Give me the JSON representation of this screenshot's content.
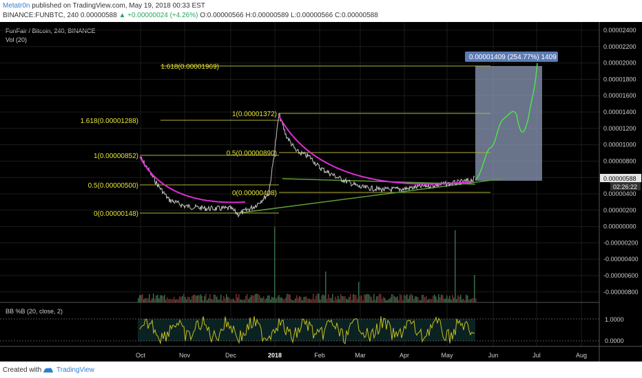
{
  "header": {
    "user": "Metatr0n",
    "published": "published on TradingView.com, May 19, 2018 00:33 EST",
    "symbol": "BINANCE:FUNBTC, 240",
    "change": "+0.00000024 (+4.26%)",
    "ohlc": "O:0.00000566 H:0.00000589 L:0.00000566 C:0.00000588",
    "price": "0.00000588"
  },
  "chart_title": {
    "name": "FunFair / Bitcoin, 240, BINANCE",
    "vol": "Vol (20)",
    "indicator": "BB %B (20, close, 2)"
  },
  "footer": {
    "created": "Created with",
    "brand": "TradingView"
  },
  "colors": {
    "background": "#000000",
    "price": "#c8c8c8",
    "fib": "#b3b33a",
    "arc": "#e02bd6",
    "trend": "#5a9e3a",
    "forecast": "#4fe04f",
    "measure": "#8c9ab8",
    "bb": "#c8c01e"
  },
  "chart_data": {
    "type": "line",
    "x_labels": [
      "Oct",
      "Nov",
      "Dec",
      "2018",
      "Feb",
      "Mar",
      "Apr",
      "May",
      "Jun",
      "Jul",
      "Aug"
    ],
    "y_axis": [
      "0.00002400",
      "0.00002200",
      "0.00002000",
      "0.00001800",
      "0.00001600",
      "0.00001400",
      "0.00001200",
      "0.00001000",
      "0.00000800",
      "0.00000600",
      "0.00000400",
      "0.00000200",
      "0.00000000",
      "-0.00000200",
      "-0.00000400",
      "-0.00000600",
      "-0.00000800"
    ],
    "last_price": "0.00000588",
    "countdown": "02:26:22",
    "fib_labels": [
      {
        "text": "1.618(0.00001969)",
        "value": 1.969e-05
      },
      {
        "text": "1(0.00001372)",
        "value": 1.372e-05
      },
      {
        "text": "1.618(0.00001288)",
        "value": 1.288e-05
      },
      {
        "text": "0.5(0.00000890)",
        "value": 8.9e-06
      },
      {
        "text": "1(0.00000852)",
        "value": 8.52e-06
      },
      {
        "text": "0.5(0.00000500)",
        "value": 5e-06
      },
      {
        "text": "0(0.00000408)",
        "value": 4.08e-06
      },
      {
        "text": "0(0.00000148)",
        "value": 1.48e-06
      }
    ],
    "measure_label": "0.00001409 (254.77%) 1409",
    "bb_axis": [
      "1.0000",
      "0.0000"
    ],
    "series": [
      {
        "name": "FUNBTC",
        "points": [
          [
            "Oct",
            8.5e-06
          ],
          [
            "mid Oct",
            5.2e-06
          ],
          [
            "Nov",
            2.5e-06
          ],
          [
            "mid Nov",
            2.2e-06
          ],
          [
            "Dec",
            2.2e-06
          ],
          [
            "mid Dec",
            1.6e-06
          ],
          [
            "late Dec",
            4e-06
          ],
          [
            "2018",
            1.37e-05
          ],
          [
            "mid Jan",
            9.5e-06
          ],
          [
            "Feb",
            7.2e-06
          ],
          [
            "Mar",
            4.8e-06
          ],
          [
            "Apr",
            4.6e-06
          ],
          [
            "May",
            5.2e-06
          ],
          [
            "mid May",
            5.7e-06
          ],
          [
            "last",
            5.88e-06
          ]
        ]
      }
    ]
  }
}
